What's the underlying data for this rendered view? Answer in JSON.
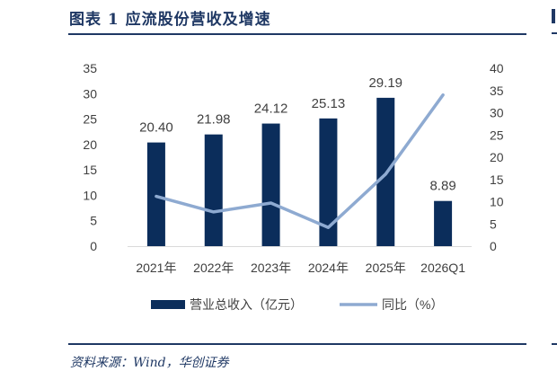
{
  "figure": {
    "title": "图表 1   应流股份营收及增速",
    "source": "资料来源：Wind，华创证券"
  },
  "colors": {
    "bar": "#0b2d5b",
    "line": "#8eaad1",
    "frame": "#1f3864",
    "text": "#404040"
  },
  "chart_data": {
    "type": "bar+line",
    "categories": [
      "2021年",
      "2022年",
      "2023年",
      "2024年",
      "2025年",
      "2026Q1"
    ],
    "series": [
      {
        "name": "营业总收入（亿元）",
        "type": "bar",
        "axis": "left",
        "values": [
          20.4,
          21.98,
          24.12,
          25.13,
          29.19,
          8.89
        ],
        "labels": [
          "20.40",
          "21.98",
          "24.12",
          "25.13",
          "29.19",
          "8.89"
        ]
      },
      {
        "name": "同比（%）",
        "type": "line",
        "axis": "right",
        "values": [
          11.2,
          7.7,
          9.7,
          4.2,
          16.2,
          34.0
        ]
      }
    ],
    "y_left": {
      "min": 0,
      "max": 35,
      "ticks": [
        "0",
        "5",
        "10",
        "15",
        "20",
        "25",
        "30",
        "35"
      ]
    },
    "y_right": {
      "min": 0,
      "max": 40,
      "ticks": [
        "0",
        "5",
        "10",
        "15",
        "20",
        "25",
        "30",
        "35",
        "40"
      ]
    },
    "grid": false,
    "legend_position": "bottom"
  }
}
